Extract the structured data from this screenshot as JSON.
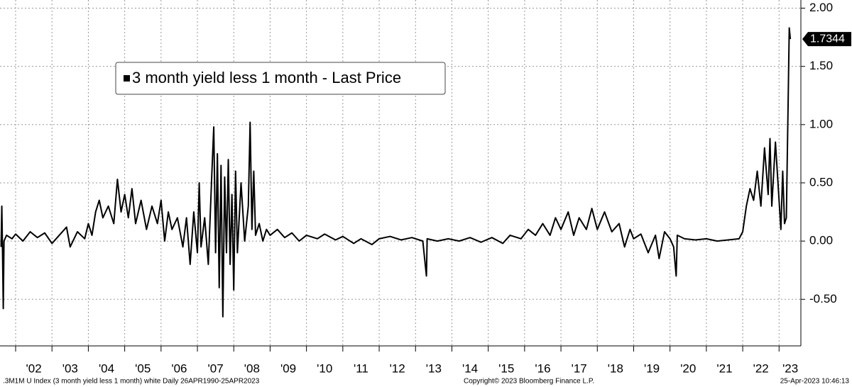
{
  "chart_data": {
    "type": "line",
    "legend": "3 month yield less 1 month - Last Price",
    "series": [
      {
        "name": "3 month yield less 1 month - Last Price",
        "color": "#000000",
        "x": [
          2001.6,
          2001.62,
          2001.64,
          2001.66,
          2001.68,
          2001.75,
          2001.9,
          2002.0,
          2002.2,
          2002.4,
          2002.6,
          2002.8,
          2003.0,
          2003.2,
          2003.4,
          2003.5,
          2003.7,
          2003.9,
          2004.0,
          2004.1,
          2004.2,
          2004.3,
          2004.4,
          2004.55,
          2004.7,
          2004.8,
          2004.9,
          2005.0,
          2005.1,
          2005.2,
          2005.3,
          2005.45,
          2005.6,
          2005.75,
          2005.9,
          2006.0,
          2006.1,
          2006.2,
          2006.3,
          2006.45,
          2006.6,
          2006.7,
          2006.8,
          2006.9,
          2007.0,
          2007.05,
          2007.1,
          2007.2,
          2007.3,
          2007.4,
          2007.45,
          2007.5,
          2007.55,
          2007.6,
          2007.65,
          2007.7,
          2007.75,
          2007.8,
          2007.85,
          2007.9,
          2007.95,
          2008.0,
          2008.05,
          2008.1,
          2008.2,
          2008.3,
          2008.4,
          2008.45,
          2008.5,
          2008.55,
          2008.6,
          2008.7,
          2008.8,
          2008.9,
          2009.0,
          2009.2,
          2009.4,
          2009.6,
          2009.8,
          2010.0,
          2010.3,
          2010.5,
          2010.8,
          2011.0,
          2011.3,
          2011.5,
          2011.8,
          2012.0,
          2012.3,
          2012.6,
          2012.9,
          2013.2,
          2013.3,
          2013.32,
          2013.6,
          2013.9,
          2014.2,
          2014.5,
          2014.8,
          2015.1,
          2015.4,
          2015.6,
          2015.9,
          2016.1,
          2016.3,
          2016.5,
          2016.7,
          2016.85,
          2017.0,
          2017.2,
          2017.35,
          2017.5,
          2017.7,
          2017.85,
          2018.0,
          2018.2,
          2018.4,
          2018.6,
          2018.75,
          2018.9,
          2019.0,
          2019.2,
          2019.4,
          2019.6,
          2019.7,
          2019.85,
          2020.0,
          2020.1,
          2020.17,
          2020.2,
          2020.4,
          2020.7,
          2021.0,
          2021.3,
          2021.6,
          2021.9,
          2022.0,
          2022.1,
          2022.2,
          2022.3,
          2022.4,
          2022.5,
          2022.6,
          2022.7,
          2022.75,
          2022.8,
          2022.9,
          2023.0,
          2023.05,
          2023.1,
          2023.15,
          2023.2,
          2023.25,
          2023.28,
          2023.31
        ],
        "values": [
          -0.05,
          0.3,
          -0.1,
          -0.58,
          0.0,
          0.05,
          0.02,
          0.06,
          0.0,
          0.08,
          0.03,
          0.07,
          -0.02,
          0.05,
          0.12,
          -0.05,
          0.08,
          0.02,
          0.15,
          0.05,
          0.25,
          0.35,
          0.2,
          0.3,
          0.15,
          0.53,
          0.25,
          0.4,
          0.2,
          0.45,
          0.15,
          0.35,
          0.1,
          0.3,
          0.15,
          0.35,
          0.0,
          0.25,
          0.1,
          0.2,
          -0.05,
          0.2,
          -0.2,
          0.25,
          -0.1,
          0.5,
          -0.05,
          0.2,
          -0.2,
          0.6,
          0.98,
          -0.1,
          0.75,
          -0.4,
          0.65,
          -0.65,
          0.55,
          -0.1,
          0.7,
          -0.2,
          0.4,
          -0.42,
          0.6,
          -0.1,
          0.5,
          0.0,
          0.3,
          1.02,
          0.1,
          0.6,
          0.05,
          0.15,
          0.0,
          0.1,
          0.05,
          0.1,
          0.03,
          0.07,
          0.0,
          0.05,
          0.02,
          0.06,
          0.01,
          0.04,
          -0.02,
          0.02,
          -0.03,
          0.02,
          0.04,
          0.01,
          0.03,
          0.0,
          -0.3,
          0.02,
          0.0,
          0.02,
          0.0,
          0.03,
          -0.01,
          0.03,
          -0.02,
          0.05,
          0.02,
          0.1,
          0.05,
          0.15,
          0.05,
          0.2,
          0.1,
          0.25,
          0.05,
          0.2,
          0.1,
          0.28,
          0.1,
          0.25,
          0.08,
          0.15,
          -0.05,
          0.1,
          0.02,
          0.06,
          -0.1,
          0.05,
          -0.15,
          0.08,
          0.02,
          -0.05,
          -0.3,
          0.05,
          0.02,
          0.01,
          0.02,
          0.0,
          0.01,
          0.02,
          0.08,
          0.3,
          0.45,
          0.35,
          0.6,
          0.3,
          0.8,
          0.4,
          0.88,
          0.3,
          0.85,
          0.35,
          0.1,
          0.6,
          0.15,
          0.2,
          1.2,
          1.83,
          1.7344
        ]
      }
    ],
    "xlim": [
      2001.57,
      2023.6
    ],
    "ylim": [
      -0.9,
      2.07
    ],
    "yticks": [
      {
        "value": -0.5,
        "label": "-0.50"
      },
      {
        "value": 0,
        "label": "0.00"
      },
      {
        "value": 0.5,
        "label": "0.50"
      },
      {
        "value": 1,
        "label": "1.00"
      },
      {
        "value": 1.5,
        "label": "1.50"
      },
      {
        "value": 2,
        "label": "2.00"
      }
    ],
    "xgrid": [
      2002,
      2003,
      2004,
      2005,
      2006,
      2007,
      2008,
      2009,
      2010,
      2011,
      2012,
      2013,
      2014,
      2015,
      2016,
      2017,
      2018,
      2019,
      2020,
      2021,
      2022,
      2023
    ],
    "xticks": [
      {
        "value": 2002.5,
        "label": "'02"
      },
      {
        "value": 2003.5,
        "label": "'03"
      },
      {
        "value": 2004.5,
        "label": "'04"
      },
      {
        "value": 2005.5,
        "label": "'05"
      },
      {
        "value": 2006.5,
        "label": "'06"
      },
      {
        "value": 2007.5,
        "label": "'07"
      },
      {
        "value": 2008.5,
        "label": "'08"
      },
      {
        "value": 2009.5,
        "label": "'09"
      },
      {
        "value": 2010.5,
        "label": "'10"
      },
      {
        "value": 2011.5,
        "label": "'11"
      },
      {
        "value": 2012.5,
        "label": "'12"
      },
      {
        "value": 2013.5,
        "label": "'13"
      },
      {
        "value": 2014.5,
        "label": "'14"
      },
      {
        "value": 2015.5,
        "label": "'15"
      },
      {
        "value": 2016.5,
        "label": "'16"
      },
      {
        "value": 2017.5,
        "label": "'17"
      },
      {
        "value": 2018.5,
        "label": "'18"
      },
      {
        "value": 2019.5,
        "label": "'19"
      },
      {
        "value": 2020.5,
        "label": "'20"
      },
      {
        "value": 2021.5,
        "label": "'21"
      },
      {
        "value": 2022.5,
        "label": "'22"
      },
      {
        "value": 2023.31,
        "label": "'23"
      }
    ],
    "grid": true,
    "footer_left": ".3M1M U Index (3 month yield less 1 month) white  Daily 26APR1990-25APR2023",
    "footer_center": "Copyright© 2023 Bloomberg Finance L.P.",
    "footer_right": "25-Apr-2023 10:46:13"
  }
}
